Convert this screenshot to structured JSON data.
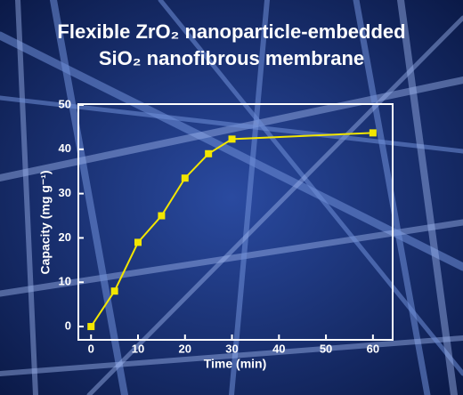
{
  "chart_data": {
    "type": "line",
    "title": [
      "Flexible ZrO₂ nanoparticle-embedded",
      "SiO₂ nanofibrous membrane"
    ],
    "x_label": "Time (min)",
    "y_label": "Capacity (mg g⁻¹)",
    "x": [
      0,
      5,
      10,
      15,
      20,
      25,
      30,
      60
    ],
    "series": [
      {
        "name": null,
        "color": "#f2e600",
        "values": [
          0,
          8,
          19,
          25,
          33.5,
          39,
          42.3,
          43.7
        ]
      }
    ],
    "xlim": [
      -2.7,
      64.2
    ],
    "ylim": [
      -3,
      50.2
    ],
    "xticks": [
      0,
      10,
      20,
      30,
      40,
      50,
      60
    ],
    "yticks": [
      0,
      10,
      20,
      30,
      40,
      50
    ]
  }
}
